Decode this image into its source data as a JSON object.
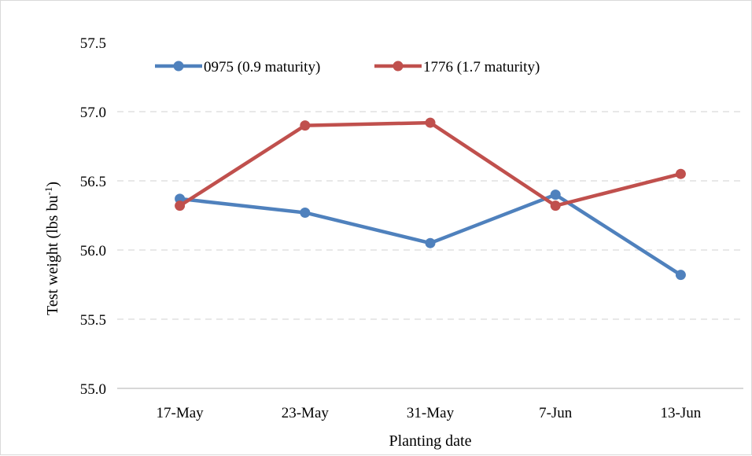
{
  "chart_data": {
    "type": "line",
    "categories": [
      "17-May",
      "23-May",
      "31-May",
      "7-Jun",
      "13-Jun"
    ],
    "series": [
      {
        "name": "0975 (0.9 maturity)",
        "values": [
          56.37,
          56.27,
          56.05,
          56.4,
          55.82
        ],
        "color": "#4f81bd"
      },
      {
        "name": "1776 (1.7 maturity)",
        "values": [
          56.32,
          56.9,
          56.92,
          56.32,
          56.55
        ],
        "color": "#c0504d"
      }
    ],
    "xlabel": "Planting date",
    "ylabel": {
      "base": "Test weight (lbs bu",
      "sup": "-1",
      "close": ")"
    },
    "ylim": [
      55.0,
      57.5
    ],
    "yticks": [
      "55.0",
      "55.5",
      "56.0",
      "56.5",
      "57.0",
      "57.5"
    ],
    "grid": true,
    "legend_position": "top-left"
  }
}
